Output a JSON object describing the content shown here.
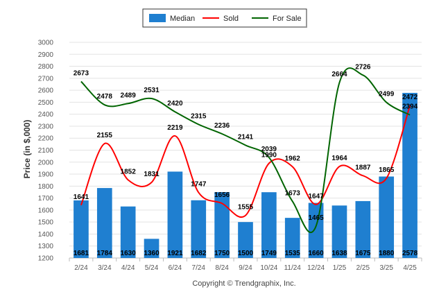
{
  "chart_data": {
    "type": "bar",
    "categories": [
      "2/24",
      "3/24",
      "4/24",
      "5/24",
      "6/24",
      "7/24",
      "8/24",
      "9/24",
      "10/24",
      "11/24",
      "12/24",
      "1/25",
      "2/25",
      "3/25",
      "4/25"
    ],
    "series": [
      {
        "name": "Median",
        "kind": "bar",
        "color": "#1f7fd0",
        "values": [
          1681,
          1784,
          1630,
          1360,
          1921,
          1682,
          1750,
          1500,
          1749,
          1535,
          1660,
          1638,
          1675,
          1880,
          2578
        ]
      },
      {
        "name": "Sold",
        "kind": "line",
        "color": "#ff0000",
        "values": [
          1641,
          2155,
          1852,
          1831,
          2219,
          1747,
          1656,
          1555,
          1990,
          1962,
          1647,
          1964,
          1887,
          1865,
          2472
        ]
      },
      {
        "name": "For Sale",
        "kind": "line",
        "color": "#006400",
        "values": [
          2673,
          2478,
          2489,
          2531,
          2420,
          2315,
          2236,
          2141,
          2039,
          1673,
          1465,
          2664,
          2726,
          2499,
          2394
        ]
      }
    ],
    "ylabel": "Price (in $,000)",
    "xlabel": "",
    "ylim": [
      1200,
      3000
    ],
    "yticks": [
      1200,
      1300,
      1400,
      1500,
      1600,
      1700,
      1800,
      1900,
      2000,
      2100,
      2200,
      2300,
      2400,
      2500,
      2600,
      2700,
      2800,
      2900,
      3000
    ],
    "grid": true,
    "legend": "top-center"
  },
  "footer": {
    "copyright": "Copyright © Trendgraphix, Inc."
  }
}
